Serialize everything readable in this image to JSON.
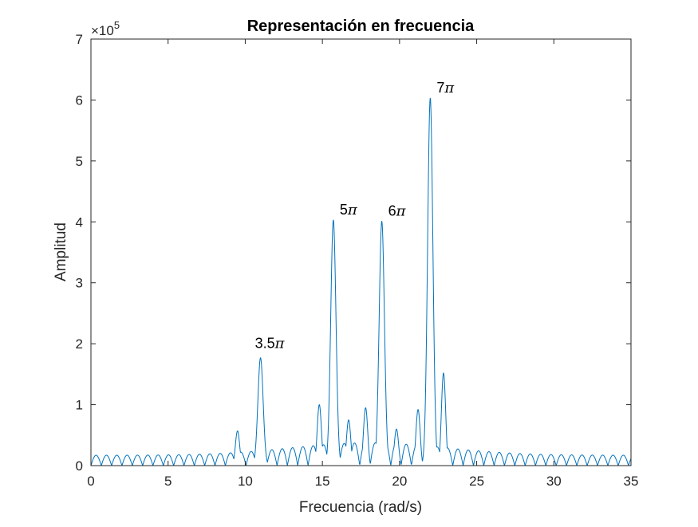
{
  "chart_data": {
    "type": "line",
    "title": "Representación en frecuencia",
    "xlabel": "Frecuencia (rad/s)",
    "ylabel": "Amplitud",
    "xlim": [
      0,
      35
    ],
    "ylim": [
      0,
      700000
    ],
    "xticks": [
      0,
      5,
      10,
      15,
      20,
      25,
      30,
      35
    ],
    "xtick_labels": [
      "0",
      "5",
      "10",
      "15",
      "20",
      "25",
      "30",
      "35"
    ],
    "yticks": [
      0,
      100000,
      200000,
      300000,
      400000,
      500000,
      600000,
      700000
    ],
    "ytick_labels": [
      "0",
      "1",
      "2",
      "3",
      "4",
      "5",
      "6",
      "7"
    ],
    "y_exponent_label": {
      "base": "×10",
      "exponent": "5"
    },
    "grid": false,
    "series_color": "#0072BD",
    "peaks": [
      {
        "x": 10.99,
        "y": 177000,
        "label": "3.5",
        "pi": "π"
      },
      {
        "x": 15.71,
        "y": 403000,
        "label": "5",
        "pi": "π"
      },
      {
        "x": 18.85,
        "y": 401000,
        "label": "6",
        "pi": "π"
      },
      {
        "x": 21.99,
        "y": 603000,
        "label": "7",
        "pi": "π"
      }
    ],
    "secondary_peaks": [
      {
        "x": 9.5,
        "y": 57000
      },
      {
        "x": 14.8,
        "y": 100000
      },
      {
        "x": 16.7,
        "y": 75000
      },
      {
        "x": 17.8,
        "y": 95000
      },
      {
        "x": 19.8,
        "y": 60000
      },
      {
        "x": 21.2,
        "y": 92000
      },
      {
        "x": 22.85,
        "y": 152000
      }
    ],
    "background_lobe_period": 0.67,
    "background_lobe_height": 17000
  }
}
